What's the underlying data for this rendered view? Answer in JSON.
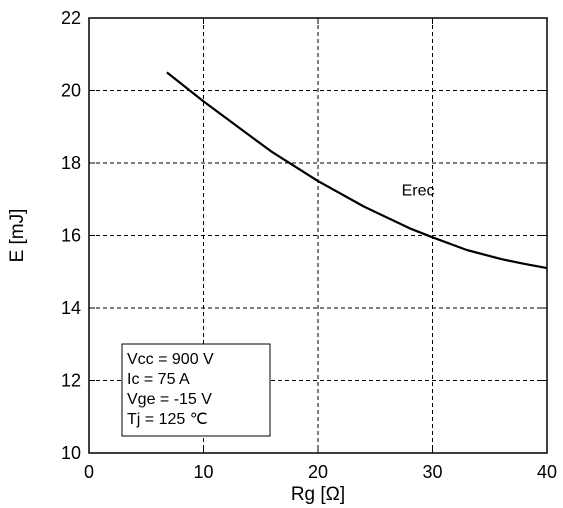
{
  "chart_data": {
    "type": "line",
    "xlabel": "Rg [Ω]",
    "ylabel": "E [mJ]",
    "xlim": [
      0,
      40
    ],
    "ylim": [
      10,
      22
    ],
    "xticks": [
      "0",
      "10",
      "20",
      "30",
      "40"
    ],
    "yticks": [
      "10",
      "12",
      "14",
      "16",
      "18",
      "20",
      "22"
    ],
    "grid": true,
    "series": [
      {
        "name": "Erec",
        "x": [
          6.8,
          10,
          13,
          16,
          20,
          24,
          28,
          30,
          33,
          36,
          38,
          40
        ],
        "y": [
          20.5,
          19.7,
          19.0,
          18.3,
          17.5,
          16.8,
          16.2,
          15.95,
          15.6,
          15.35,
          15.22,
          15.1
        ]
      }
    ],
    "annotations": [
      "Vcc = 900 V",
      "Ic = 75 A",
      "Vge = -15 V",
      "Tj = 125 ℃"
    ]
  }
}
